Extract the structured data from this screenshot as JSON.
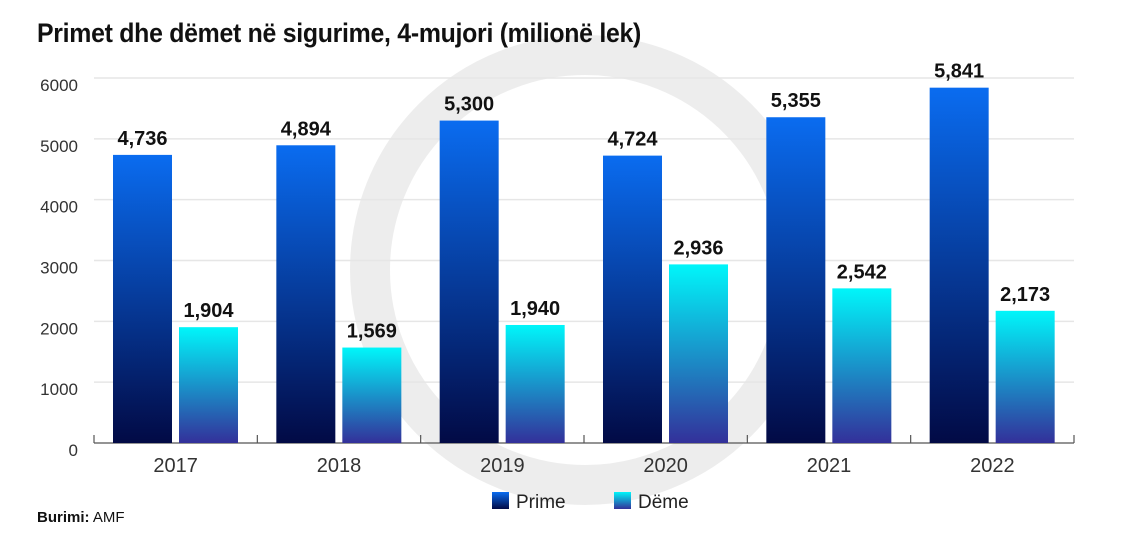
{
  "chart_data": {
    "type": "bar",
    "title": "Primet dhe dëmet në sigurime, 4-mujori (milionë lek)",
    "categories": [
      "2017",
      "2018",
      "2019",
      "2020",
      "2021",
      "2022"
    ],
    "series": [
      {
        "name": "Prime",
        "values": [
          4736,
          4894,
          5300,
          4724,
          5355,
          5841
        ],
        "labels": [
          "4,736",
          "4,894",
          "5,300",
          "4,724",
          "5,355",
          "5,841"
        ],
        "color_top": "#0a6cf0",
        "color_bottom": "#020a45"
      },
      {
        "name": "Dëme",
        "values": [
          1904,
          1569,
          1940,
          2936,
          2542,
          2173
        ],
        "labels": [
          "1,904",
          "1,569",
          "1,940",
          "2,936",
          "2,542",
          "2,173"
        ],
        "color_top": "#00f6fa",
        "color_bottom": "#33309a"
      }
    ],
    "ylim": [
      0,
      6000
    ],
    "yticks": [
      "0",
      "1000",
      "2000",
      "3000",
      "4000",
      "5000",
      "6000"
    ],
    "grid": true,
    "legend_position": "bottom"
  },
  "source": {
    "label": "Burimi:",
    "value": "AMF"
  }
}
